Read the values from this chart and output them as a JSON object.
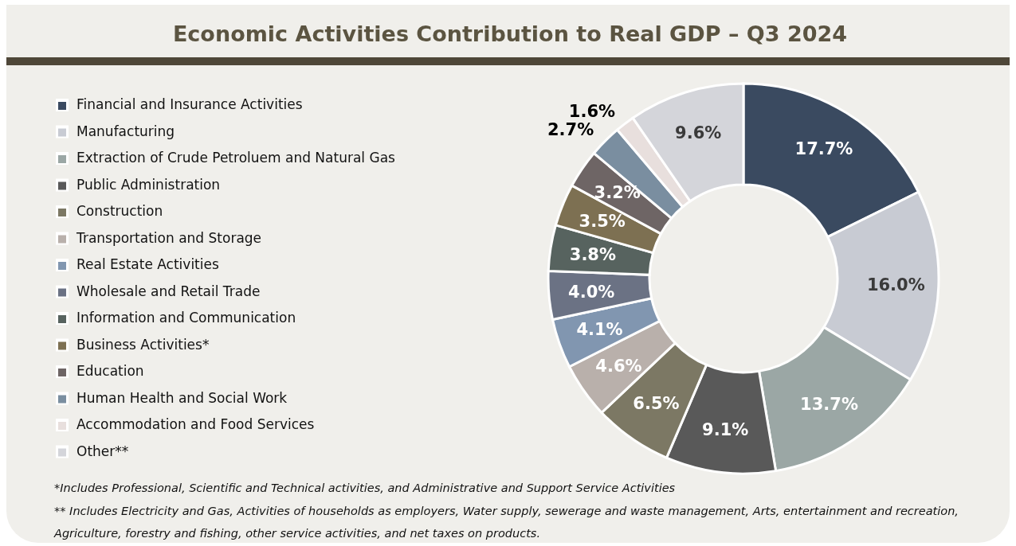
{
  "chart_data": {
    "type": "donut",
    "title": "Economic Activities Contribution to Real GDP – Q3 2024",
    "categories": [
      "Financial and Insurance Activities",
      "Manufacturing",
      "Extraction of Crude Petroluem and Natural Gas",
      "Public Administration",
      "Construction",
      "Transportation and Storage",
      "Real Estate Activities",
      "Wholesale and Retail Trade",
      "Information and Communication",
      "Business Activities*",
      "Education",
      "Human Health and Social Work",
      "Accommodation and Food Services",
      "Other**"
    ],
    "values": [
      17.7,
      16.0,
      13.7,
      9.1,
      6.5,
      4.6,
      4.1,
      4.0,
      3.8,
      3.5,
      3.2,
      2.7,
      1.6,
      9.6
    ],
    "value_labels": [
      "17.7%",
      "16.0%",
      "13.7%",
      "9.1%",
      "6.5%",
      "4.6%",
      "4.1%",
      "4.0%",
      "3.8%",
      "3.5%",
      "3.2%",
      "2.7%",
      "1.6%",
      "9.6%"
    ],
    "colors": [
      "#3a4a60",
      "#c8cbd3",
      "#9ba7a5",
      "#595959",
      "#7c7864",
      "#b9b0ab",
      "#8196b0",
      "#6b7284",
      "#57635f",
      "#7d7052",
      "#6e6565",
      "#7a8ea0",
      "#e8dfdd",
      "#d4d5da"
    ],
    "legend": "left",
    "annotations": [
      "*Includes Professional, Scientific and Technical activities, and Administrative and Support Service Activities",
      "** Includes Electricity and Gas, Activities of households as employers, Water supply, sewerage and waste management, Arts, entertainment and recreation, Agriculture, forestry and fishing, other service activities, and net taxes on products."
    ]
  }
}
